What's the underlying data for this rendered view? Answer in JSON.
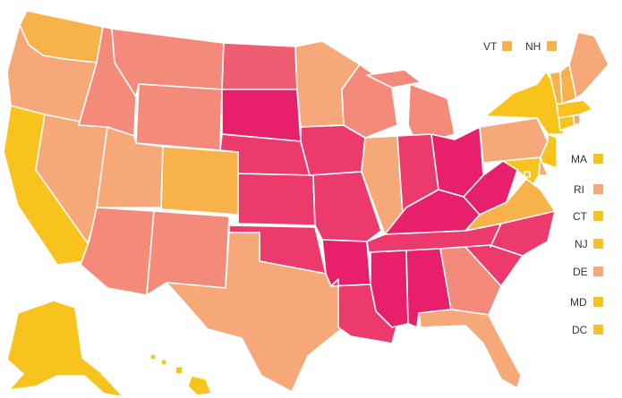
{
  "map": {
    "colors": {
      "yellow": "#f8c31c",
      "gold": "#f7b24a",
      "peach": "#f7a878",
      "salmon": "#f48a7a",
      "rose": "#ef5d73",
      "pink": "#ec3a6d",
      "magenta": "#e81f6a"
    },
    "states": [
      {
        "id": "WA",
        "level": "gold"
      },
      {
        "id": "OR",
        "level": "peach"
      },
      {
        "id": "CA",
        "level": "yellow"
      },
      {
        "id": "NV",
        "level": "peach"
      },
      {
        "id": "ID",
        "level": "salmon"
      },
      {
        "id": "MT",
        "level": "salmon"
      },
      {
        "id": "WY",
        "level": "salmon"
      },
      {
        "id": "UT",
        "level": "peach"
      },
      {
        "id": "AZ",
        "level": "salmon"
      },
      {
        "id": "CO",
        "level": "gold"
      },
      {
        "id": "NM",
        "level": "salmon"
      },
      {
        "id": "ND",
        "level": "rose"
      },
      {
        "id": "SD",
        "level": "magenta"
      },
      {
        "id": "NE",
        "level": "pink"
      },
      {
        "id": "KS",
        "level": "pink"
      },
      {
        "id": "OK",
        "level": "pink"
      },
      {
        "id": "TX",
        "level": "peach"
      },
      {
        "id": "MN",
        "level": "peach"
      },
      {
        "id": "IA",
        "level": "pink"
      },
      {
        "id": "MO",
        "level": "pink"
      },
      {
        "id": "AR",
        "level": "magenta"
      },
      {
        "id": "LA",
        "level": "pink"
      },
      {
        "id": "WI",
        "level": "salmon"
      },
      {
        "id": "IL",
        "level": "peach"
      },
      {
        "id": "MI",
        "level": "salmon"
      },
      {
        "id": "IN",
        "level": "pink"
      },
      {
        "id": "OH",
        "level": "magenta"
      },
      {
        "id": "KY",
        "level": "magenta"
      },
      {
        "id": "TN",
        "level": "pink"
      },
      {
        "id": "MS",
        "level": "magenta"
      },
      {
        "id": "AL",
        "level": "magenta"
      },
      {
        "id": "GA",
        "level": "salmon"
      },
      {
        "id": "FL",
        "level": "peach"
      },
      {
        "id": "SC",
        "level": "pink"
      },
      {
        "id": "NC",
        "level": "pink"
      },
      {
        "id": "VA",
        "level": "gold"
      },
      {
        "id": "WV",
        "level": "magenta"
      },
      {
        "id": "PA",
        "level": "peach"
      },
      {
        "id": "NY",
        "level": "yellow"
      },
      {
        "id": "ME",
        "level": "peach"
      },
      {
        "id": "VT",
        "level": "gold"
      },
      {
        "id": "NH",
        "level": "gold"
      },
      {
        "id": "MA",
        "level": "yellow"
      },
      {
        "id": "RI",
        "level": "peach"
      },
      {
        "id": "CT",
        "level": "yellow"
      },
      {
        "id": "NJ",
        "level": "yellow"
      },
      {
        "id": "DE",
        "level": "peach"
      },
      {
        "id": "MD",
        "level": "yellow"
      },
      {
        "id": "DC",
        "level": "yellow"
      },
      {
        "id": "AK",
        "level": "yellow"
      },
      {
        "id": "HI",
        "level": "yellow"
      }
    ],
    "callouts": [
      {
        "label": "VT",
        "level": "gold"
      },
      {
        "label": "NH",
        "level": "gold"
      },
      {
        "label": "MA",
        "level": "yellow"
      },
      {
        "label": "RI",
        "level": "peach"
      },
      {
        "label": "CT",
        "level": "yellow"
      },
      {
        "label": "NJ",
        "level": "yellow"
      },
      {
        "label": "DE",
        "level": "peach"
      },
      {
        "label": "MD",
        "level": "yellow"
      },
      {
        "label": "DC",
        "level": "yellow"
      }
    ]
  }
}
